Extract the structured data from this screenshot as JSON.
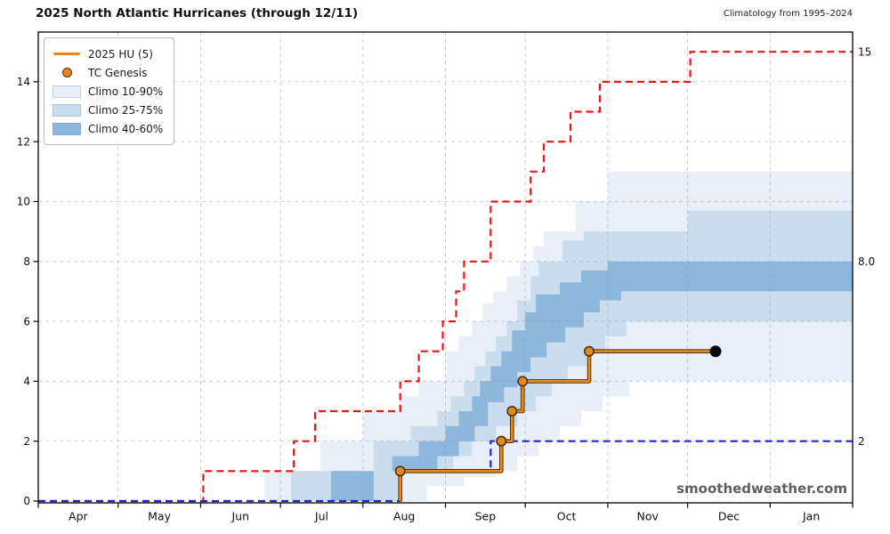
{
  "header": {
    "title": "2025 North Atlantic Hurricanes (through 12/11)",
    "subtitle": "Climatology from 1995–2024"
  },
  "watermark": "smoothedweather.com",
  "colors": {
    "orange": "#e8871e",
    "orange_edge": "#453311",
    "red": "#ee1515",
    "blue": "#2020dd",
    "band_light": "#e9eff8",
    "band_mid": "#c9ddee",
    "band_dark": "#8db8dc",
    "current_dot": "#0a0a0a",
    "grid": "#8a9096",
    "axis": "#000000"
  },
  "legend": {
    "items": [
      {
        "label": "2025 HU (5)",
        "swatch": "line",
        "color_key": "orange"
      },
      {
        "label": "TC Genesis",
        "swatch": "dot",
        "color_key": "orange"
      },
      {
        "label": "Climo 10-90%",
        "swatch": "patch",
        "color_key": "band_light"
      },
      {
        "label": "Climo 25-75%",
        "swatch": "patch",
        "color_key": "band_mid"
      },
      {
        "label": "Climo 40-60%",
        "swatch": "patch",
        "color_key": "band_dark"
      }
    ]
  },
  "chart_data": {
    "type": "line",
    "title": "2025 North Atlantic Hurricanes (through 12/11)",
    "subtitle": "Climatology from 1995–2024",
    "xlabel": "",
    "ylabel": "",
    "x_axis": {
      "unit": "days since Apr 1",
      "months": [
        {
          "label": "Apr",
          "day": 0
        },
        {
          "label": "May",
          "day": 30
        },
        {
          "label": "Jun",
          "day": 61
        },
        {
          "label": "Jul",
          "day": 91
        },
        {
          "label": "Aug",
          "day": 122
        },
        {
          "label": "Sep",
          "day": 153
        },
        {
          "label": "Oct",
          "day": 183
        },
        {
          "label": "Nov",
          "day": 214
        },
        {
          "label": "Dec",
          "day": 244
        },
        {
          "label": "Jan",
          "day": 275
        }
      ],
      "end_day": 306
    },
    "y_axis": {
      "ticks": [
        0,
        2,
        4,
        6,
        8,
        10,
        12,
        14
      ],
      "range": [
        0,
        15.7
      ],
      "right_annotations": [
        {
          "value": 15,
          "label": "15"
        },
        {
          "value": 8,
          "label": "8.0"
        },
        {
          "value": 2,
          "label": "2"
        }
      ]
    },
    "series": [
      {
        "name": "Climo max (red dashed)",
        "color_key": "red",
        "style": "dashed",
        "start": [
          0,
          0
        ],
        "steps": [
          [
            62,
            1
          ],
          [
            96,
            2
          ],
          [
            104,
            3
          ],
          [
            136,
            4
          ],
          [
            143,
            5
          ],
          [
            152,
            6
          ],
          [
            157,
            7
          ],
          [
            160,
            8
          ],
          [
            170,
            10
          ],
          [
            185,
            11
          ],
          [
            190,
            12
          ],
          [
            200,
            13
          ],
          [
            211,
            14
          ],
          [
            245,
            15
          ]
        ],
        "end_day": 306
      },
      {
        "name": "Climo min (blue dashed)",
        "color_key": "blue",
        "style": "dashed",
        "start": [
          0,
          0
        ],
        "steps": [
          [
            136,
            1
          ],
          [
            170,
            2
          ]
        ],
        "end_day": 306
      },
      {
        "name": "2025 HU (5)",
        "color_key": "orange",
        "style": "solid",
        "start": [
          136,
          0
        ],
        "steps": [
          [
            136,
            1
          ],
          [
            174,
            2
          ],
          [
            178,
            3
          ],
          [
            182,
            4
          ],
          [
            207,
            5
          ]
        ],
        "end_day": 254.5
      }
    ],
    "bands": [
      {
        "label": "Climo 10-90%",
        "color_key": "band_light",
        "start_day": 85,
        "upper_steps": [
          [
            85,
            1
          ],
          [
            106,
            2
          ],
          [
            122,
            3
          ],
          [
            136,
            3.5
          ],
          [
            143,
            4
          ],
          [
            153,
            5
          ],
          [
            158,
            5.5
          ],
          [
            163,
            6
          ],
          [
            167,
            6.6
          ],
          [
            171,
            7
          ],
          [
            176,
            7.5
          ],
          [
            181,
            8
          ],
          [
            186,
            8.5
          ],
          [
            190,
            9
          ],
          [
            202,
            10
          ],
          [
            214,
            11
          ]
        ],
        "lower_steps": [
          [
            146,
            0.5
          ],
          [
            160,
            0.8
          ],
          [
            172,
            1
          ],
          [
            180,
            1.5
          ],
          [
            188,
            2
          ],
          [
            196,
            2.5
          ],
          [
            204,
            3
          ],
          [
            212,
            3.5
          ],
          [
            222,
            4
          ]
        ]
      },
      {
        "label": "Climo 25-75%",
        "color_key": "band_mid",
        "start_day": 95,
        "upper_steps": [
          [
            95,
            1
          ],
          [
            126,
            2
          ],
          [
            140,
            2.5
          ],
          [
            150,
            3
          ],
          [
            155,
            3.5
          ],
          [
            160,
            4
          ],
          [
            164,
            4.5
          ],
          [
            168,
            5
          ],
          [
            172,
            5.5
          ],
          [
            176,
            6
          ],
          [
            180,
            6.7
          ],
          [
            185,
            7.5
          ],
          [
            188,
            8
          ],
          [
            197,
            8.7
          ],
          [
            205,
            9
          ],
          [
            244,
            9.7
          ]
        ],
        "lower_steps": [
          [
            136,
            1
          ],
          [
            156,
            1.5
          ],
          [
            163,
            2
          ],
          [
            172,
            2.5
          ],
          [
            180,
            3
          ],
          [
            187,
            3.5
          ],
          [
            193,
            4
          ],
          [
            199,
            4.5
          ],
          [
            206,
            5
          ],
          [
            213,
            5.5
          ],
          [
            221,
            6
          ]
        ]
      },
      {
        "label": "Climo 40-60%",
        "color_key": "band_dark",
        "start_day": 110,
        "upper_steps": [
          [
            110,
            1
          ],
          [
            133,
            1.5
          ],
          [
            143,
            2
          ],
          [
            153,
            2.5
          ],
          [
            158,
            3
          ],
          [
            163,
            3.5
          ],
          [
            166,
            4
          ],
          [
            170,
            4.5
          ],
          [
            174,
            5
          ],
          [
            178,
            5.7
          ],
          [
            183,
            6.3
          ],
          [
            187,
            6.9
          ],
          [
            196,
            7.3
          ],
          [
            204,
            7.7
          ],
          [
            214,
            8
          ]
        ],
        "lower_steps": [
          [
            126,
            1
          ],
          [
            150,
            1.5
          ],
          [
            158,
            2
          ],
          [
            164,
            2.5
          ],
          [
            169,
            3.3
          ],
          [
            175,
            3.8
          ],
          [
            180,
            4.3
          ],
          [
            185,
            4.8
          ],
          [
            191,
            5.3
          ],
          [
            198,
            5.8
          ],
          [
            205,
            6.3
          ],
          [
            211,
            6.7
          ],
          [
            219,
            7
          ]
        ]
      }
    ],
    "genesis_points": [
      [
        136,
        1
      ],
      [
        174,
        2
      ],
      [
        178,
        3
      ],
      [
        182,
        4
      ],
      [
        207,
        5
      ]
    ],
    "current_marker": {
      "day": 254.5,
      "value": 5
    }
  }
}
